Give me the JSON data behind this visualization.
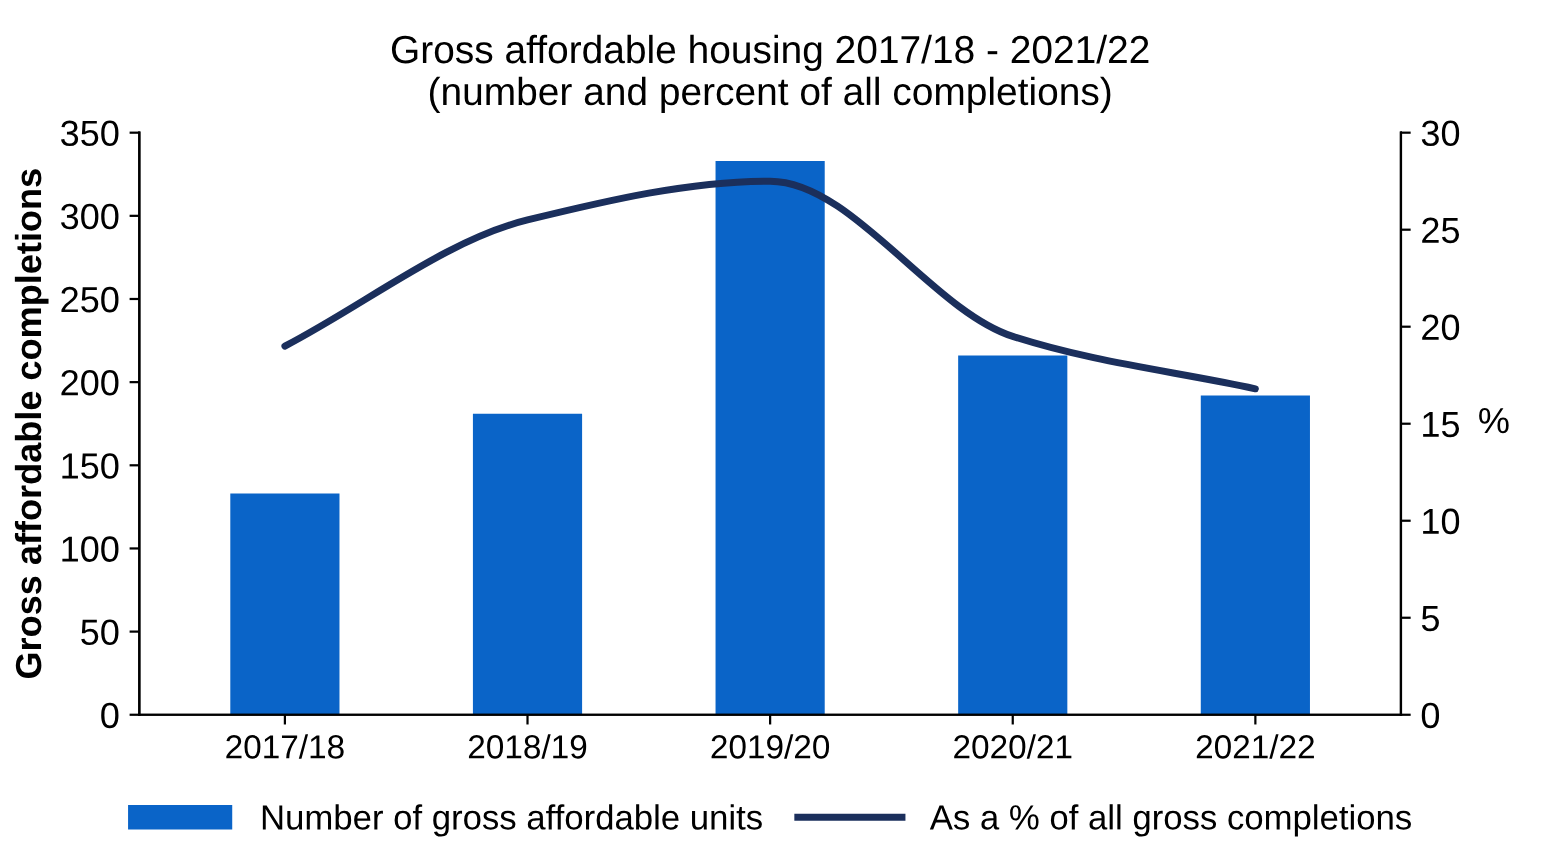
{
  "chart_data": {
    "type": "bar",
    "title": "Gross affordable housing 2017/18 - 2021/22\n(number and percent of all completions)",
    "categories": [
      "2017/18",
      "2018/19",
      "2019/20",
      "2020/21",
      "2021/22"
    ],
    "series": [
      {
        "name": "Number of gross affordable units",
        "color": "#0a64c8",
        "values": [
          133,
          181,
          333,
          216,
          192
        ]
      },
      {
        "name": "As a % of all gross completions",
        "color": "#1b2f5c",
        "type": "line",
        "axis": "y2",
        "values": [
          19.0,
          25.5,
          27.5,
          19.5,
          16.8
        ]
      }
    ],
    "ylabel": "Gross affordable completions",
    "y2label": "%",
    "ylim": [
      0,
      350
    ],
    "yticks": [
      0,
      50,
      100,
      150,
      200,
      250,
      300,
      350
    ],
    "y2lim": [
      0,
      30
    ],
    "y2ticks": [
      0,
      5,
      10,
      15,
      20,
      25,
      30
    ],
    "legend": "bottom",
    "grid": false
  }
}
